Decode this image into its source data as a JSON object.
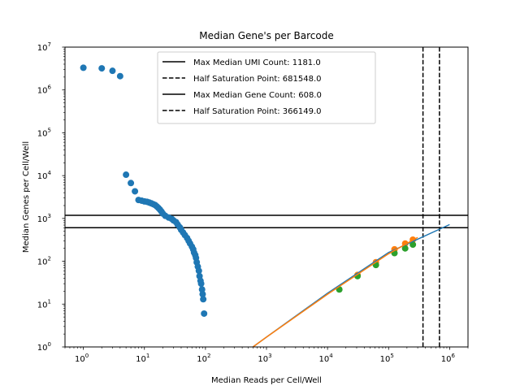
{
  "chart_data": {
    "type": "scatter",
    "title": "Median Gene's per Barcode",
    "xlabel": "Median Reads per Cell/Well",
    "ylabel": "Median Genes per Cell/Well",
    "xscale": "log",
    "yscale": "log",
    "xlim": [
      0.5,
      2000000
    ],
    "ylim": [
      1,
      10000000
    ],
    "x_ticks": [
      {
        "value": 1,
        "base": "10",
        "exp": "0"
      },
      {
        "value": 10,
        "base": "10",
        "exp": "1"
      },
      {
        "value": 100,
        "base": "10",
        "exp": "2"
      },
      {
        "value": 1000,
        "base": "10",
        "exp": "3"
      },
      {
        "value": 10000,
        "base": "10",
        "exp": "4"
      },
      {
        "value": 100000,
        "base": "10",
        "exp": "5"
      },
      {
        "value": 1000000,
        "base": "10",
        "exp": "6"
      }
    ],
    "y_ticks": [
      {
        "value": 1,
        "base": "10",
        "exp": "0"
      },
      {
        "value": 10,
        "base": "10",
        "exp": "1"
      },
      {
        "value": 100,
        "base": "10",
        "exp": "2"
      },
      {
        "value": 1000,
        "base": "10",
        "exp": "3"
      },
      {
        "value": 10000,
        "base": "10",
        "exp": "4"
      },
      {
        "value": 100000,
        "base": "10",
        "exp": "5"
      },
      {
        "value": 1000000,
        "base": "10",
        "exp": "6"
      },
      {
        "value": 10000000,
        "base": "10",
        "exp": "7"
      }
    ],
    "legend_position": "top-center",
    "legend": [
      {
        "label": "Max Median UMI Count: 1181.0",
        "style": "solid"
      },
      {
        "label": "Half Saturation Point: 681548.0",
        "style": "dashed"
      },
      {
        "label": "Max Median Gene Count: 608.0",
        "style": "solid"
      },
      {
        "label": "Half Saturation Point: 366149.0",
        "style": "dashed"
      }
    ],
    "hlines": [
      {
        "y": 1181,
        "color": "#000000",
        "style": "solid"
      },
      {
        "y": 608,
        "color": "#000000",
        "style": "solid"
      }
    ],
    "vlines": [
      {
        "x": 681548,
        "color": "#000000",
        "style": "dashed"
      },
      {
        "x": 366149,
        "color": "#000000",
        "style": "dashed"
      }
    ],
    "series": [
      {
        "kind": "scatter",
        "color": "#1f77b4",
        "points": [
          [
            1,
            3300000
          ],
          [
            2,
            3200000
          ],
          [
            3,
            2800000
          ],
          [
            4,
            2100000
          ],
          [
            5,
            10500
          ],
          [
            6,
            6700
          ],
          [
            7,
            4300
          ],
          [
            8,
            2700
          ],
          [
            9,
            2600
          ],
          [
            10,
            2500
          ],
          [
            11,
            2450
          ],
          [
            12,
            2350
          ],
          [
            13,
            2250
          ],
          [
            14,
            2150
          ],
          [
            15,
            2050
          ],
          [
            16,
            1900
          ],
          [
            17,
            1750
          ],
          [
            18,
            1600
          ],
          [
            19,
            1450
          ],
          [
            20,
            1300
          ],
          [
            22,
            1150
          ],
          [
            25,
            1050
          ],
          [
            28,
            980
          ],
          [
            30,
            900
          ],
          [
            33,
            820
          ],
          [
            35,
            720
          ],
          [
            38,
            620
          ],
          [
            40,
            540
          ],
          [
            43,
            470
          ],
          [
            46,
            410
          ],
          [
            50,
            350
          ],
          [
            53,
            300
          ],
          [
            56,
            260
          ],
          [
            60,
            220
          ],
          [
            63,
            190
          ],
          [
            65,
            160
          ],
          [
            68,
            140
          ],
          [
            70,
            120
          ],
          [
            72,
            95
          ],
          [
            75,
            75
          ],
          [
            78,
            60
          ],
          [
            80,
            45
          ],
          [
            83,
            35
          ],
          [
            85,
            30
          ],
          [
            88,
            22
          ],
          [
            90,
            17
          ],
          [
            92,
            13
          ],
          [
            95,
            6
          ]
        ]
      },
      {
        "kind": "scatter",
        "color": "#ff7f0e",
        "points": [
          [
            31000,
            48
          ],
          [
            62000,
            95
          ],
          [
            125000,
            190
          ],
          [
            187000,
            260
          ],
          [
            250000,
            320
          ]
        ]
      },
      {
        "kind": "scatter",
        "color": "#2ca02c",
        "points": [
          [
            15600,
            22
          ],
          [
            31000,
            45
          ],
          [
            62000,
            82
          ],
          [
            125000,
            155
          ],
          [
            187000,
            200
          ],
          [
            250000,
            245
          ]
        ]
      },
      {
        "kind": "line",
        "color": "#1f77b4",
        "points": [
          [
            600,
            1
          ],
          [
            1000,
            1.7
          ],
          [
            10000,
            18
          ],
          [
            100000,
            160
          ],
          [
            1000000,
            720
          ]
        ]
      },
      {
        "kind": "line",
        "color": "#ff7f0e",
        "points": [
          [
            600,
            1
          ],
          [
            1000,
            1.7
          ],
          [
            10000,
            17
          ],
          [
            100000,
            150
          ],
          [
            300000,
            360
          ]
        ]
      }
    ]
  }
}
